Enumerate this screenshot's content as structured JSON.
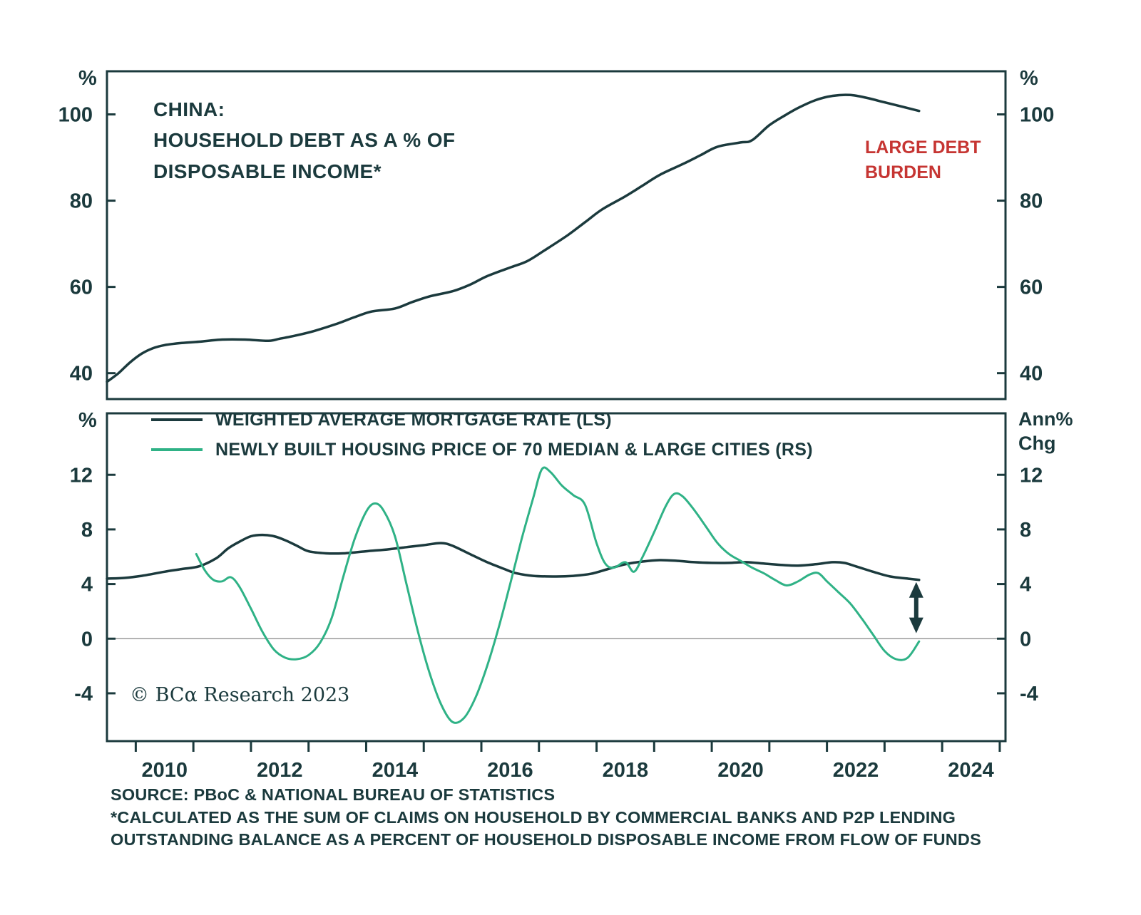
{
  "colors": {
    "dark": "#1b3a3d",
    "green": "#2fb286",
    "red": "#c63532",
    "zero_line": "#9a9a9a",
    "background": "#ffffff"
  },
  "chart_data": [
    {
      "type": "line",
      "title": "CHINA:\nHOUSEHOLD DEBT AS A % OF\nDISPOSABLE INCOME*",
      "annotation": "LARGE DEBT\nBURDEN",
      "unit_left": "%",
      "unit_right": "%",
      "xlim": [
        2009,
        2024.6
      ],
      "ylim": [
        34,
        110
      ],
      "yticks": [
        40,
        60,
        80,
        100
      ],
      "grid": false,
      "series": [
        {
          "name": "HOUSEHOLD DEBT AS A % OF DISPOSABLE INCOME",
          "color": "dark",
          "width": 3.5,
          "x": [
            2009.0,
            2009.2,
            2009.4,
            2009.6,
            2009.8,
            2010.0,
            2010.3,
            2010.6,
            2011.0,
            2011.4,
            2011.8,
            2012.0,
            2012.3,
            2012.6,
            2013.0,
            2013.3,
            2013.6,
            2014.0,
            2014.3,
            2014.6,
            2015.0,
            2015.3,
            2015.6,
            2016.0,
            2016.3,
            2016.6,
            2017.0,
            2017.3,
            2017.6,
            2018.0,
            2018.3,
            2018.6,
            2019.0,
            2019.3,
            2019.6,
            2020.0,
            2020.2,
            2020.5,
            2020.8,
            2021.0,
            2021.3,
            2021.6,
            2021.9,
            2022.2,
            2022.5,
            2022.8,
            2023.1
          ],
          "y": [
            38,
            40,
            42.5,
            44.5,
            45.8,
            46.5,
            47,
            47.3,
            47.8,
            47.8,
            47.5,
            48,
            48.8,
            49.8,
            51.5,
            53,
            54.3,
            55,
            56.5,
            57.8,
            59,
            60.5,
            62.5,
            64.5,
            66,
            68.5,
            72,
            75,
            78,
            81,
            83.5,
            86,
            88.5,
            90.5,
            92.5,
            93.5,
            94,
            97.5,
            100,
            101.5,
            103.3,
            104.3,
            104.5,
            103.8,
            102.8,
            101.8,
            100.8
          ]
        }
      ]
    },
    {
      "type": "line",
      "unit_left": "%",
      "unit_right": "Ann%\nChg",
      "xlim": [
        2009,
        2024.6
      ],
      "ylim": [
        -7.5,
        16.5
      ],
      "yticks": [
        -4,
        0,
        4,
        8,
        12
      ],
      "xticks": [
        2010,
        2012,
        2014,
        2016,
        2018,
        2020,
        2022,
        2024
      ],
      "zero_line": true,
      "legend_position": "top-left-inside",
      "series": [
        {
          "name": "WEIGHTED AVERAGE MORTGAGE RATE (LS)",
          "color": "dark",
          "width": 3.5,
          "x": [
            2009.0,
            2009.3,
            2009.6,
            2010.0,
            2010.3,
            2010.6,
            2010.9,
            2011.1,
            2011.3,
            2011.5,
            2011.7,
            2011.9,
            2012.1,
            2012.3,
            2012.5,
            2012.8,
            2013.1,
            2013.5,
            2013.9,
            2014.2,
            2014.5,
            2014.8,
            2015.0,
            2015.3,
            2015.6,
            2015.9,
            2016.1,
            2016.4,
            2016.8,
            2017.1,
            2017.4,
            2017.7,
            2018.0,
            2018.3,
            2018.6,
            2018.9,
            2019.2,
            2019.5,
            2019.8,
            2020.1,
            2020.4,
            2020.7,
            2021.0,
            2021.3,
            2021.6,
            2021.8,
            2022.0,
            2022.3,
            2022.6,
            2022.9,
            2023.1
          ],
          "y": [
            4.4,
            4.45,
            4.6,
            4.9,
            5.1,
            5.3,
            5.9,
            6.6,
            7.1,
            7.5,
            7.6,
            7.5,
            7.2,
            6.8,
            6.4,
            6.25,
            6.25,
            6.4,
            6.55,
            6.7,
            6.85,
            7.0,
            6.8,
            6.2,
            5.6,
            5.1,
            4.8,
            4.6,
            4.55,
            4.6,
            4.75,
            5.1,
            5.45,
            5.65,
            5.75,
            5.7,
            5.6,
            5.55,
            5.55,
            5.6,
            5.5,
            5.4,
            5.35,
            5.45,
            5.6,
            5.55,
            5.3,
            4.9,
            4.55,
            4.4,
            4.3
          ]
        },
        {
          "name": "NEWLY BUILT HOUSING PRICE OF 70 MEDIAN & LARGE CITIES (RS)",
          "color": "green",
          "width": 3,
          "x": [
            2010.55,
            2010.7,
            2010.85,
            2011.0,
            2011.15,
            2011.3,
            2011.5,
            2011.7,
            2011.9,
            2012.1,
            2012.3,
            2012.5,
            2012.7,
            2012.9,
            2013.1,
            2013.3,
            2013.5,
            2013.65,
            2013.8,
            2014.0,
            2014.2,
            2014.4,
            2014.6,
            2014.8,
            2015.0,
            2015.2,
            2015.4,
            2015.6,
            2015.8,
            2016.0,
            2016.2,
            2016.4,
            2016.55,
            2016.7,
            2016.9,
            2017.1,
            2017.3,
            2017.5,
            2017.65,
            2017.8,
            2018.0,
            2018.15,
            2018.3,
            2018.5,
            2018.7,
            2018.85,
            2019.0,
            2019.2,
            2019.4,
            2019.6,
            2019.8,
            2020.0,
            2020.2,
            2020.4,
            2020.6,
            2020.8,
            2021.0,
            2021.2,
            2021.35,
            2021.5,
            2021.7,
            2021.9,
            2022.1,
            2022.3,
            2022.5,
            2022.7,
            2022.9,
            2023.1
          ],
          "y": [
            6.2,
            5.0,
            4.3,
            4.2,
            4.5,
            3.8,
            2.2,
            0.5,
            -0.8,
            -1.4,
            -1.5,
            -1.2,
            -0.3,
            1.5,
            4.5,
            7.3,
            9.3,
            9.9,
            9.4,
            7.5,
            4.0,
            0.5,
            -2.5,
            -4.8,
            -6.1,
            -5.8,
            -4.3,
            -2.0,
            0.8,
            4.0,
            7.3,
            10.3,
            12.4,
            12.2,
            11.2,
            10.5,
            9.8,
            7.0,
            5.5,
            5.2,
            5.6,
            4.9,
            6.0,
            7.8,
            9.7,
            10.6,
            10.4,
            9.4,
            8.2,
            7.0,
            6.2,
            5.7,
            5.2,
            4.8,
            4.3,
            3.9,
            4.2,
            4.7,
            4.8,
            4.2,
            3.4,
            2.6,
            1.5,
            0.3,
            -0.9,
            -1.5,
            -1.4,
            -0.2
          ]
        }
      ],
      "arrow": {
        "x": 2023.05,
        "y_from": 0.4,
        "y_to": 4.15
      }
    }
  ],
  "copyright": "© BCα Research 2023",
  "footer": {
    "source": "SOURCE: PBoC & NATIONAL BUREAU OF STATISTICS",
    "note": "*CALCULATED AS THE SUM OF CLAIMS ON HOUSEHOLD BY COMMERCIAL BANKS AND P2P LENDING\nOUTSTANDING BALANCE AS A PERCENT OF HOUSEHOLD DISPOSABLE INCOME FROM FLOW OF FUNDS"
  }
}
